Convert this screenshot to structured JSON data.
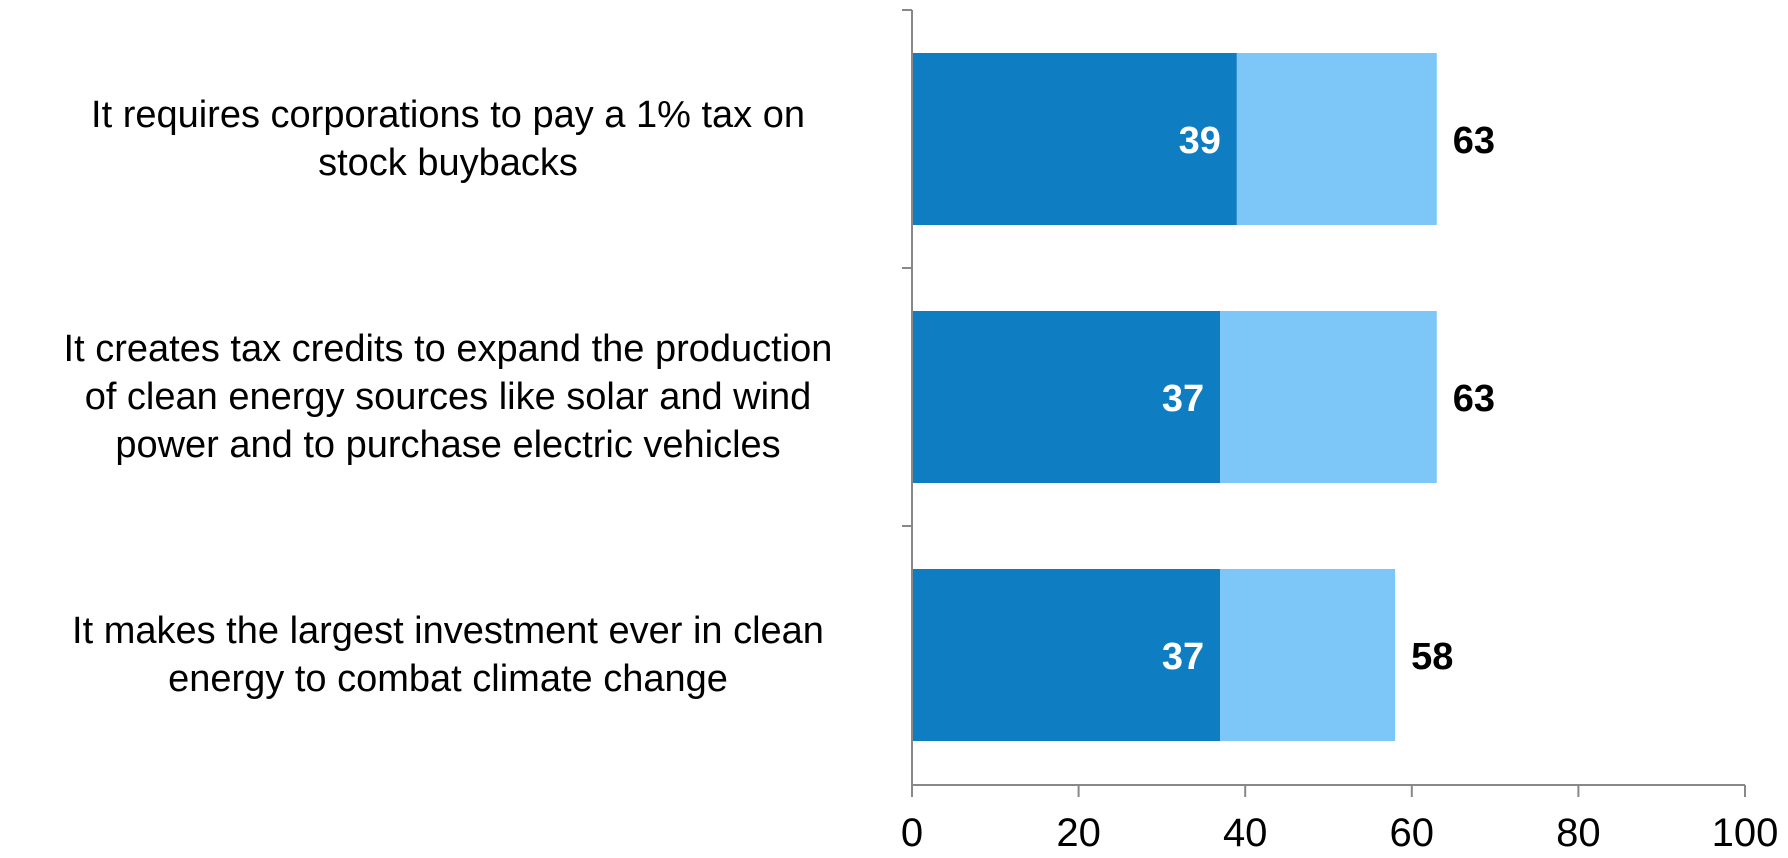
{
  "chart_data": {
    "type": "bar",
    "orientation": "horizontal",
    "stacked": true,
    "categories": [
      "It requires corporations to pay a 1% tax on\nstock buybacks",
      "It creates tax credits to expand the production\nof clean energy sources like solar and wind\npower and to purchase electric vehicles",
      "It makes the largest investment ever in clean\nenergy to combat climate change"
    ],
    "series": [
      {
        "values": [
          39,
          37,
          37
        ],
        "color": "#0F7DC2"
      },
      {
        "values": [
          24,
          26,
          21
        ],
        "color": "#7CC7F8"
      }
    ],
    "totals": [
      63,
      63,
      58
    ],
    "inner_labels": [
      "39",
      "37",
      "37"
    ],
    "total_labels": [
      "63",
      "63",
      "58"
    ],
    "xlim": [
      0,
      100
    ],
    "xticks": [
      0,
      20,
      40,
      60,
      80,
      100
    ],
    "xtick_labels": [
      "0",
      "20",
      "40",
      "60",
      "80",
      "100"
    ],
    "title": "",
    "xlabel": "",
    "ylabel": "",
    "grid": false,
    "legend": "none"
  }
}
